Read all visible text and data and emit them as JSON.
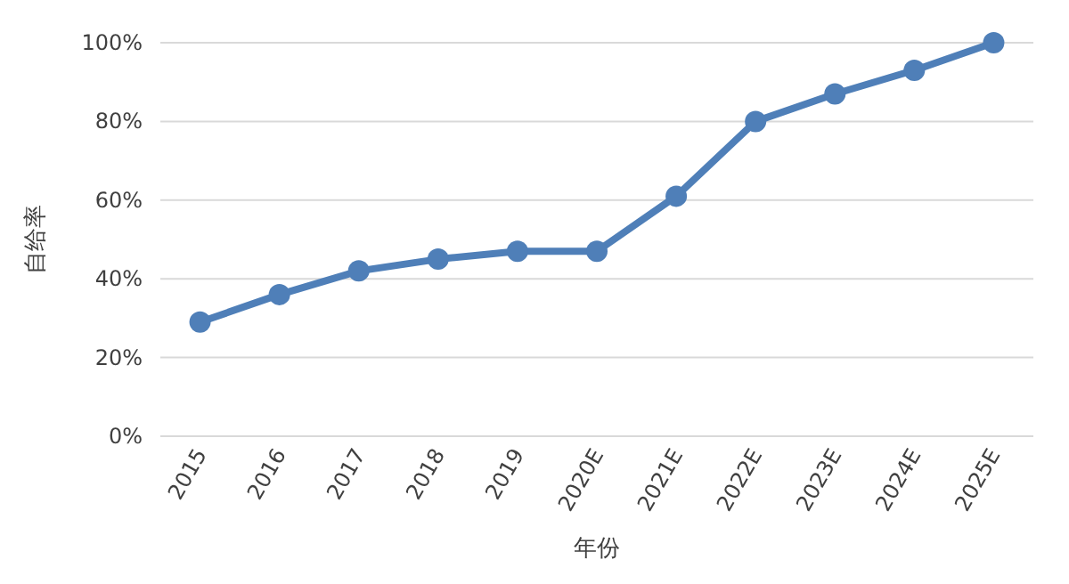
{
  "chart_data": {
    "type": "line",
    "xlabel": "年份",
    "ylabel": "自给率",
    "categories": [
      "2015",
      "2016",
      "2017",
      "2018",
      "2019",
      "2020E",
      "2021E",
      "2022E",
      "2023E",
      "2024E",
      "2025E"
    ],
    "series": [
      {
        "color": "#4f7fb8",
        "values": [
          29,
          36,
          42,
          45,
          47,
          47,
          61,
          80,
          87,
          93,
          100
        ]
      }
    ],
    "ylim": [
      0,
      100
    ],
    "yticks": [
      {
        "value": 0,
        "label": "0%"
      },
      {
        "value": 20,
        "label": "20%"
      },
      {
        "value": 40,
        "label": "40%"
      },
      {
        "value": 60,
        "label": "60%"
      },
      {
        "value": 80,
        "label": "80%"
      },
      {
        "value": 100,
        "label": "100%"
      }
    ],
    "grid": "y",
    "marker": "circle",
    "line_style": "solid"
  }
}
